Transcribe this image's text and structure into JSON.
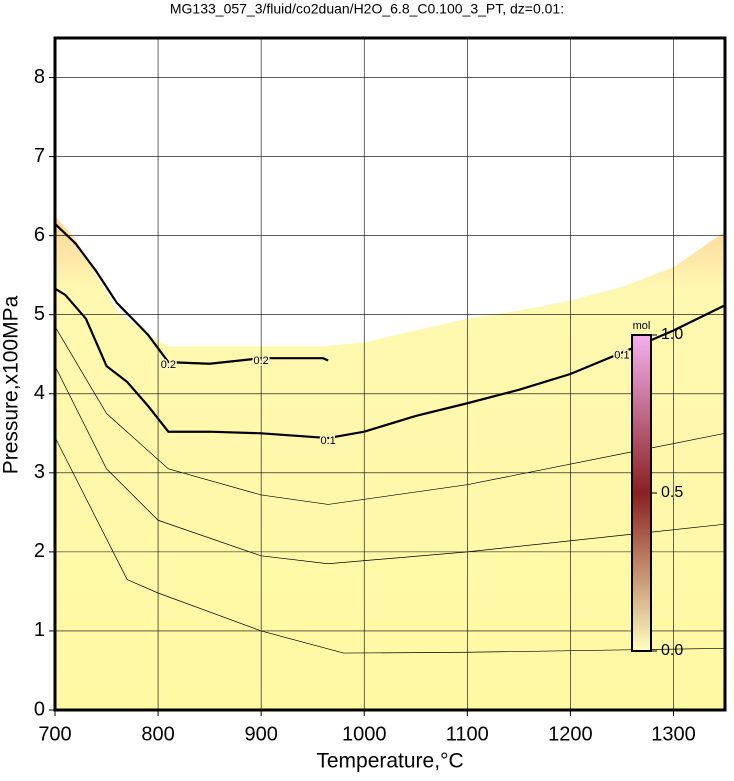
{
  "chart_data": {
    "type": "contour",
    "title": "MG133_057_3/fluid/co2duan/H2O_6.8_C0.100_3_PT, dz=0.01:",
    "x_label": "Temperature,°C",
    "y_label": "Pressure,x100MPa",
    "xlim": [
      700,
      1350
    ],
    "xticks": [
      700,
      800,
      900,
      1000,
      1100,
      1200,
      1300
    ],
    "ylim": [
      0,
      8.5
    ],
    "yticks": [
      0,
      1,
      2,
      3,
      4,
      5,
      6,
      7,
      8
    ],
    "grid": true,
    "field": {
      "x": [
        700,
        720,
        740,
        760,
        790,
        810,
        900,
        960,
        1000,
        1050,
        1100,
        1150,
        1200,
        1250,
        1300,
        1350
      ],
      "values": [
        6.25,
        5.95,
        5.5,
        5.05,
        4.75,
        4.6,
        4.6,
        4.6,
        4.65,
        4.8,
        4.95,
        5.05,
        5.18,
        5.35,
        5.6,
        6.05
      ],
      "colors": [
        "#fcd49c",
        "#fff8b0",
        "#fff9a4"
      ]
    },
    "series": [
      {
        "name": "0.2",
        "bold": true,
        "x": [
          700,
          720,
          740,
          760,
          790,
          810,
          850,
          900,
          960,
          965
        ],
        "values": [
          6.15,
          5.9,
          5.55,
          5.15,
          4.75,
          4.4,
          4.38,
          4.45,
          4.45,
          4.42
        ]
      },
      {
        "name": "0.1",
        "bold": true,
        "x": [
          700,
          710,
          730,
          750,
          770,
          790,
          810,
          850,
          900,
          965,
          1000,
          1050,
          1100,
          1150,
          1200,
          1250,
          1300,
          1350
        ],
        "values": [
          5.33,
          5.25,
          4.95,
          4.35,
          4.15,
          3.85,
          3.52,
          3.52,
          3.5,
          3.44,
          3.52,
          3.72,
          3.88,
          4.05,
          4.25,
          4.52,
          4.8,
          5.12
        ]
      },
      {
        "bold": false,
        "x": [
          700,
          750,
          810,
          900,
          965,
          1100,
          1350
        ],
        "values": [
          4.85,
          3.75,
          3.05,
          2.72,
          2.6,
          2.85,
          3.5
        ]
      },
      {
        "bold": false,
        "x": [
          700,
          750,
          800,
          900,
          965,
          1100,
          1350
        ],
        "values": [
          4.35,
          3.05,
          2.4,
          1.95,
          1.85,
          2.0,
          2.35
        ]
      },
      {
        "bold": false,
        "x": [
          700,
          770,
          800,
          900,
          980,
          1100,
          1350
        ],
        "values": [
          3.45,
          1.65,
          1.48,
          1.0,
          0.72,
          0.73,
          0.78
        ]
      }
    ],
    "colorbar": {
      "label": "mol",
      "lim": [
        0,
        1
      ],
      "ticks": [
        {
          "value": 0,
          "label": "0.0"
        },
        {
          "value": 0.5,
          "label": "0.5"
        },
        {
          "value": 1,
          "label": "1.0"
        }
      ],
      "colors": [
        "#ffffc0",
        "#8a2020",
        "#f4b0f0"
      ]
    }
  }
}
